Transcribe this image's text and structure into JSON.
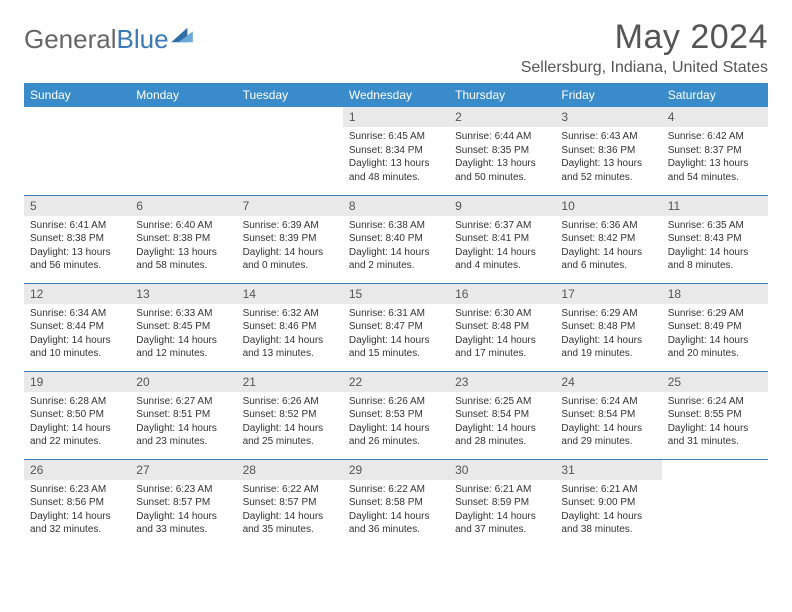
{
  "brand": {
    "part1": "General",
    "part2": "Blue"
  },
  "title": "May 2024",
  "location": "Sellersburg, Indiana, United States",
  "colors": {
    "header_bg": "#3a8bc9",
    "header_text": "#ffffff",
    "accent": "#3a7ab8",
    "daynum_bg": "#e9e9e9",
    "text": "#555555",
    "body_text": "#333333",
    "page_bg": "#ffffff"
  },
  "typography": {
    "title_fontsize": 34,
    "location_fontsize": 16,
    "header_fontsize": 12,
    "daynum_fontsize": 12,
    "body_fontsize": 10
  },
  "day_headers": [
    "Sunday",
    "Monday",
    "Tuesday",
    "Wednesday",
    "Thursday",
    "Friday",
    "Saturday"
  ],
  "weeks": [
    [
      null,
      null,
      null,
      {
        "num": "1",
        "sunrise": "Sunrise: 6:45 AM",
        "sunset": "Sunset: 8:34 PM",
        "daylight": "Daylight: 13 hours and 48 minutes."
      },
      {
        "num": "2",
        "sunrise": "Sunrise: 6:44 AM",
        "sunset": "Sunset: 8:35 PM",
        "daylight": "Daylight: 13 hours and 50 minutes."
      },
      {
        "num": "3",
        "sunrise": "Sunrise: 6:43 AM",
        "sunset": "Sunset: 8:36 PM",
        "daylight": "Daylight: 13 hours and 52 minutes."
      },
      {
        "num": "4",
        "sunrise": "Sunrise: 6:42 AM",
        "sunset": "Sunset: 8:37 PM",
        "daylight": "Daylight: 13 hours and 54 minutes."
      }
    ],
    [
      {
        "num": "5",
        "sunrise": "Sunrise: 6:41 AM",
        "sunset": "Sunset: 8:38 PM",
        "daylight": "Daylight: 13 hours and 56 minutes."
      },
      {
        "num": "6",
        "sunrise": "Sunrise: 6:40 AM",
        "sunset": "Sunset: 8:38 PM",
        "daylight": "Daylight: 13 hours and 58 minutes."
      },
      {
        "num": "7",
        "sunrise": "Sunrise: 6:39 AM",
        "sunset": "Sunset: 8:39 PM",
        "daylight": "Daylight: 14 hours and 0 minutes."
      },
      {
        "num": "8",
        "sunrise": "Sunrise: 6:38 AM",
        "sunset": "Sunset: 8:40 PM",
        "daylight": "Daylight: 14 hours and 2 minutes."
      },
      {
        "num": "9",
        "sunrise": "Sunrise: 6:37 AM",
        "sunset": "Sunset: 8:41 PM",
        "daylight": "Daylight: 14 hours and 4 minutes."
      },
      {
        "num": "10",
        "sunrise": "Sunrise: 6:36 AM",
        "sunset": "Sunset: 8:42 PM",
        "daylight": "Daylight: 14 hours and 6 minutes."
      },
      {
        "num": "11",
        "sunrise": "Sunrise: 6:35 AM",
        "sunset": "Sunset: 8:43 PM",
        "daylight": "Daylight: 14 hours and 8 minutes."
      }
    ],
    [
      {
        "num": "12",
        "sunrise": "Sunrise: 6:34 AM",
        "sunset": "Sunset: 8:44 PM",
        "daylight": "Daylight: 14 hours and 10 minutes."
      },
      {
        "num": "13",
        "sunrise": "Sunrise: 6:33 AM",
        "sunset": "Sunset: 8:45 PM",
        "daylight": "Daylight: 14 hours and 12 minutes."
      },
      {
        "num": "14",
        "sunrise": "Sunrise: 6:32 AM",
        "sunset": "Sunset: 8:46 PM",
        "daylight": "Daylight: 14 hours and 13 minutes."
      },
      {
        "num": "15",
        "sunrise": "Sunrise: 6:31 AM",
        "sunset": "Sunset: 8:47 PM",
        "daylight": "Daylight: 14 hours and 15 minutes."
      },
      {
        "num": "16",
        "sunrise": "Sunrise: 6:30 AM",
        "sunset": "Sunset: 8:48 PM",
        "daylight": "Daylight: 14 hours and 17 minutes."
      },
      {
        "num": "17",
        "sunrise": "Sunrise: 6:29 AM",
        "sunset": "Sunset: 8:48 PM",
        "daylight": "Daylight: 14 hours and 19 minutes."
      },
      {
        "num": "18",
        "sunrise": "Sunrise: 6:29 AM",
        "sunset": "Sunset: 8:49 PM",
        "daylight": "Daylight: 14 hours and 20 minutes."
      }
    ],
    [
      {
        "num": "19",
        "sunrise": "Sunrise: 6:28 AM",
        "sunset": "Sunset: 8:50 PM",
        "daylight": "Daylight: 14 hours and 22 minutes."
      },
      {
        "num": "20",
        "sunrise": "Sunrise: 6:27 AM",
        "sunset": "Sunset: 8:51 PM",
        "daylight": "Daylight: 14 hours and 23 minutes."
      },
      {
        "num": "21",
        "sunrise": "Sunrise: 6:26 AM",
        "sunset": "Sunset: 8:52 PM",
        "daylight": "Daylight: 14 hours and 25 minutes."
      },
      {
        "num": "22",
        "sunrise": "Sunrise: 6:26 AM",
        "sunset": "Sunset: 8:53 PM",
        "daylight": "Daylight: 14 hours and 26 minutes."
      },
      {
        "num": "23",
        "sunrise": "Sunrise: 6:25 AM",
        "sunset": "Sunset: 8:54 PM",
        "daylight": "Daylight: 14 hours and 28 minutes."
      },
      {
        "num": "24",
        "sunrise": "Sunrise: 6:24 AM",
        "sunset": "Sunset: 8:54 PM",
        "daylight": "Daylight: 14 hours and 29 minutes."
      },
      {
        "num": "25",
        "sunrise": "Sunrise: 6:24 AM",
        "sunset": "Sunset: 8:55 PM",
        "daylight": "Daylight: 14 hours and 31 minutes."
      }
    ],
    [
      {
        "num": "26",
        "sunrise": "Sunrise: 6:23 AM",
        "sunset": "Sunset: 8:56 PM",
        "daylight": "Daylight: 14 hours and 32 minutes."
      },
      {
        "num": "27",
        "sunrise": "Sunrise: 6:23 AM",
        "sunset": "Sunset: 8:57 PM",
        "daylight": "Daylight: 14 hours and 33 minutes."
      },
      {
        "num": "28",
        "sunrise": "Sunrise: 6:22 AM",
        "sunset": "Sunset: 8:57 PM",
        "daylight": "Daylight: 14 hours and 35 minutes."
      },
      {
        "num": "29",
        "sunrise": "Sunrise: 6:22 AM",
        "sunset": "Sunset: 8:58 PM",
        "daylight": "Daylight: 14 hours and 36 minutes."
      },
      {
        "num": "30",
        "sunrise": "Sunrise: 6:21 AM",
        "sunset": "Sunset: 8:59 PM",
        "daylight": "Daylight: 14 hours and 37 minutes."
      },
      {
        "num": "31",
        "sunrise": "Sunrise: 6:21 AM",
        "sunset": "Sunset: 9:00 PM",
        "daylight": "Daylight: 14 hours and 38 minutes."
      },
      null
    ]
  ]
}
